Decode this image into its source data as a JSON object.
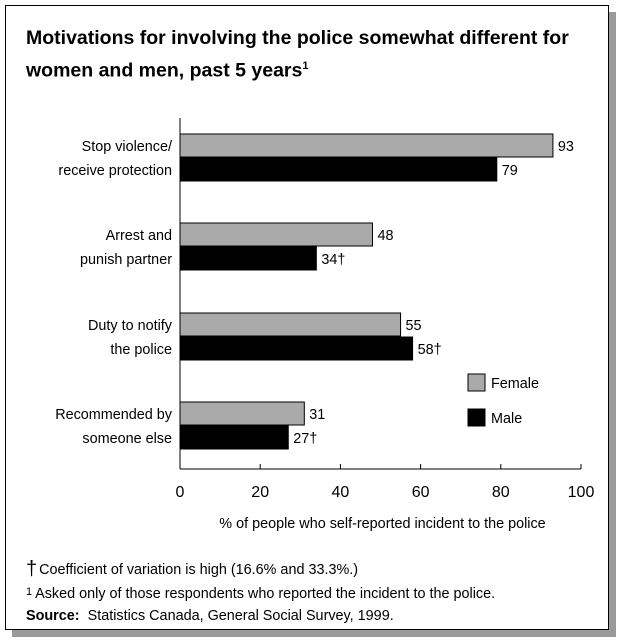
{
  "title": "Motivations for involving the police somewhat different for women and men, past 5 years",
  "title_footnote_mark": "1",
  "colors": {
    "female": "#aaaaaa",
    "male": "#000000"
  },
  "chart_data": {
    "type": "bar",
    "orientation": "horizontal",
    "categories": [
      [
        "Stop violence/",
        "receive protection"
      ],
      [
        "Arrest and",
        "punish partner"
      ],
      [
        "Duty to notify",
        "the police"
      ],
      [
        "Recommended by",
        "someone else"
      ]
    ],
    "series": [
      {
        "name": "Female",
        "values": [
          93,
          48,
          55,
          31
        ],
        "labels": [
          "93",
          "48",
          "55",
          "31"
        ]
      },
      {
        "name": "Male",
        "values": [
          79,
          34,
          58,
          27
        ],
        "labels": [
          "79",
          "34†",
          "58†",
          "27†"
        ]
      }
    ],
    "xlabel": "% of people who self-reported incident to the police",
    "xlim": [
      0,
      100
    ],
    "xticks": [
      0,
      20,
      40,
      60,
      80,
      100
    ],
    "grid": false,
    "legend": "right-inside"
  },
  "notes": {
    "dagger_symbol": "†",
    "dagger_text": "Coefficient of variation is high (16.6% and 33.3%.)",
    "footnote_mark": "1",
    "footnote_text": "Asked only of those respondents who reported the incident to the police.",
    "source_label": "Source:",
    "source_text": "Statistics Canada, General Social Survey, 1999."
  }
}
